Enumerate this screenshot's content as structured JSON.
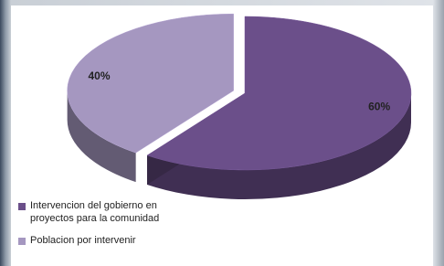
{
  "chart_data": {
    "type": "pie",
    "categories": [
      "Intervencion del gobierno en proyectos para la comunidad",
      "Poblacion por intervenir"
    ],
    "values": [
      60,
      40
    ],
    "value_labels": [
      "60%",
      "40%"
    ],
    "colors": [
      "#6b4f8a",
      "#a597c0"
    ],
    "legend": "bottom-left"
  }
}
